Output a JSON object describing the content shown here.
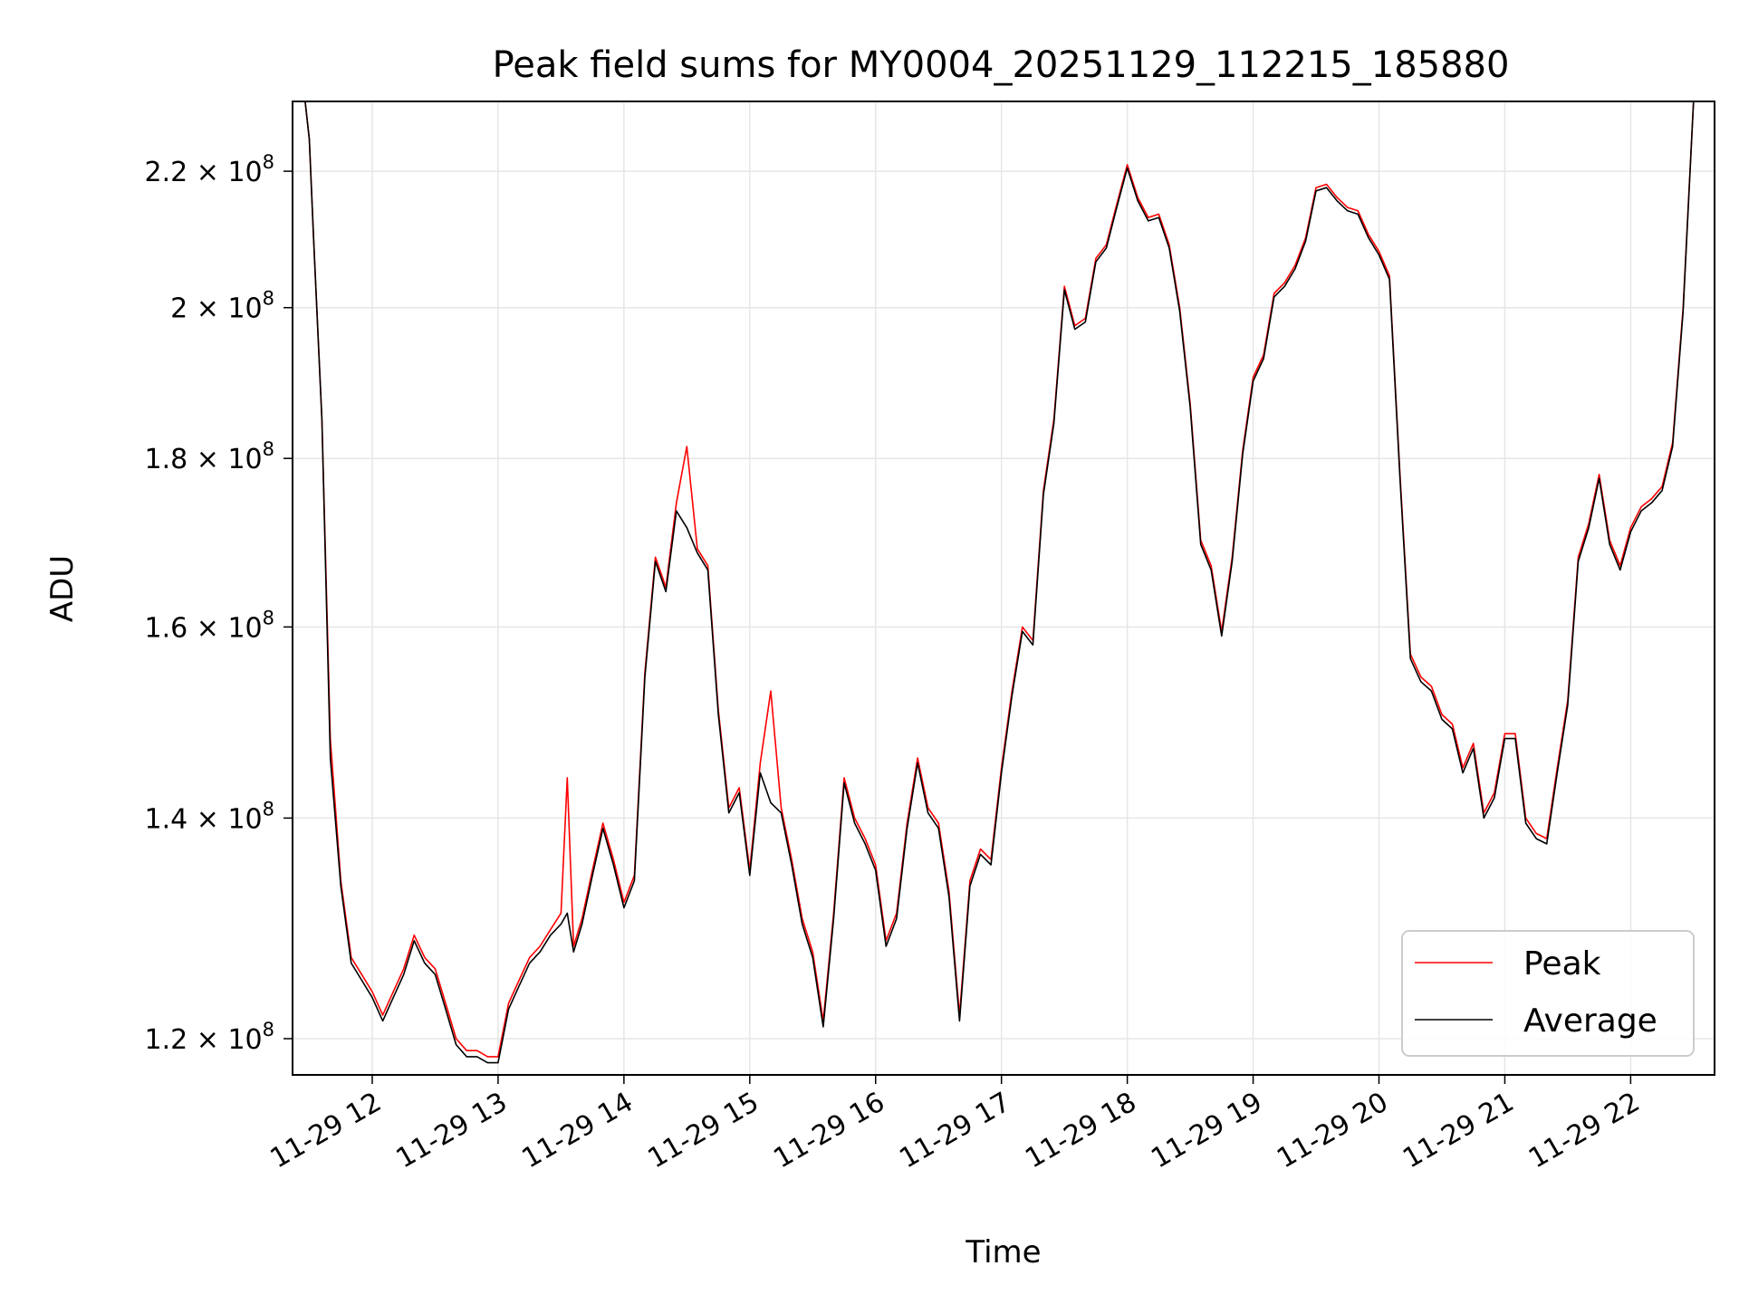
{
  "chart_data": {
    "type": "line",
    "title": "Peak field sums for MY0004_20251129_112215_185880",
    "xlabel": "Time",
    "ylabel": "ADU",
    "yscale": "log",
    "xlim": [
      "2025-11-29 11:22",
      "2025-11-29 22:40"
    ],
    "ylim": [
      117000000,
      231000000
    ],
    "grid": true,
    "legend_position": "lower right",
    "x_ticks": [
      {
        "time": "2025-11-29 12:00",
        "label": "11-29 12"
      },
      {
        "time": "2025-11-29 13:00",
        "label": "11-29 13"
      },
      {
        "time": "2025-11-29 14:00",
        "label": "11-29 14"
      },
      {
        "time": "2025-11-29 15:00",
        "label": "11-29 15"
      },
      {
        "time": "2025-11-29 16:00",
        "label": "11-29 16"
      },
      {
        "time": "2025-11-29 17:00",
        "label": "11-29 17"
      },
      {
        "time": "2025-11-29 18:00",
        "label": "11-29 18"
      },
      {
        "time": "2025-11-29 19:00",
        "label": "11-29 19"
      },
      {
        "time": "2025-11-29 20:00",
        "label": "11-29 20"
      },
      {
        "time": "2025-11-29 21:00",
        "label": "11-29 21"
      },
      {
        "time": "2025-11-29 22:00",
        "label": "11-29 22"
      }
    ],
    "y_ticks": [
      {
        "value": 120000000,
        "mantissa": "1.2",
        "exponent": "8"
      },
      {
        "value": 140000000,
        "mantissa": "1.4",
        "exponent": "8"
      },
      {
        "value": 160000000,
        "mantissa": "1.6",
        "exponent": "8"
      },
      {
        "value": 180000000,
        "mantissa": "1.8",
        "exponent": "8"
      },
      {
        "value": 200000000,
        "mantissa": "2",
        "exponent": "8"
      },
      {
        "value": 220000000,
        "mantissa": "2.2",
        "exponent": "8"
      }
    ],
    "series": [
      {
        "name": "Peak",
        "color": "#ff0000"
      },
      {
        "name": "Average",
        "color": "#000000"
      }
    ],
    "x": [
      "11:22",
      "11:25",
      "11:28",
      "11:30",
      "11:32",
      "11:36",
      "11:40",
      "11:45",
      "11:50",
      "11:55",
      "12:00",
      "12:05",
      "12:10",
      "12:15",
      "12:20",
      "12:25",
      "12:30",
      "12:35",
      "12:40",
      "12:45",
      "12:50",
      "12:55",
      "13:00",
      "13:05",
      "13:10",
      "13:15",
      "13:20",
      "13:25",
      "13:30",
      "13:33",
      "13:36",
      "13:40",
      "13:45",
      "13:50",
      "13:55",
      "14:00",
      "14:05",
      "14:10",
      "14:15",
      "14:20",
      "14:25",
      "14:30",
      "14:35",
      "14:40",
      "14:45",
      "14:50",
      "14:55",
      "15:00",
      "15:05",
      "15:10",
      "15:15",
      "15:20",
      "15:25",
      "15:30",
      "15:35",
      "15:40",
      "15:45",
      "15:50",
      "15:55",
      "16:00",
      "16:05",
      "16:10",
      "16:15",
      "16:20",
      "16:25",
      "16:30",
      "16:35",
      "16:40",
      "16:45",
      "16:50",
      "16:55",
      "17:00",
      "17:05",
      "17:10",
      "17:15",
      "17:20",
      "17:25",
      "17:30",
      "17:35",
      "17:40",
      "17:45",
      "17:50",
      "17:55",
      "18:00",
      "18:05",
      "18:10",
      "18:15",
      "18:20",
      "18:25",
      "18:30",
      "18:35",
      "18:40",
      "18:45",
      "18:50",
      "18:55",
      "19:00",
      "19:05",
      "19:10",
      "19:15",
      "19:20",
      "19:25",
      "19:30",
      "19:35",
      "19:40",
      "19:45",
      "19:50",
      "19:55",
      "20:00",
      "20:05",
      "20:10",
      "20:15",
      "20:20",
      "20:25",
      "20:30",
      "20:35",
      "20:40",
      "20:45",
      "20:50",
      "20:55",
      "21:00",
      "21:05",
      "21:10",
      "21:15",
      "21:20",
      "21:25",
      "21:30",
      "21:35",
      "21:40",
      "21:45",
      "21:50",
      "21:55",
      "22:00",
      "22:05",
      "22:10",
      "22:15",
      "22:20",
      "22:25",
      "22:30",
      "22:35",
      "22:40"
    ],
    "peak": [
      231000000,
      231000000,
      231000000,
      225000000,
      210000000,
      185000000,
      148000000,
      134000000,
      127000000,
      125500000,
      124000000,
      122000000,
      124000000,
      126000000,
      129000000,
      127000000,
      126000000,
      123000000,
      120000000,
      119000000,
      119000000,
      118500000,
      118500000,
      123000000,
      125000000,
      127000000,
      128000000,
      129500000,
      131000000,
      144000000,
      128000000,
      130500000,
      135000000,
      139500000,
      136000000,
      132000000,
      134500000,
      155000000,
      168000000,
      164500000,
      174500000,
      181500000,
      169000000,
      167000000,
      151000000,
      141000000,
      143000000,
      135000000,
      145500000,
      153000000,
      141000000,
      136000000,
      130500000,
      127500000,
      121500000,
      131000000,
      144000000,
      140000000,
      138000000,
      135500000,
      128500000,
      131000000,
      139500000,
      146000000,
      141000000,
      139500000,
      133000000,
      122000000,
      134000000,
      137000000,
      136000000,
      145000000,
      153000000,
      160000000,
      158500000,
      176000000,
      185000000,
      203000000,
      197500000,
      198500000,
      207000000,
      209000000,
      215000000,
      221000000,
      216000000,
      213000000,
      213500000,
      209000000,
      200000000,
      187000000,
      170000000,
      167000000,
      159500000,
      168000000,
      181000000,
      190500000,
      193500000,
      202000000,
      203500000,
      206000000,
      210000000,
      217500000,
      218000000,
      216000000,
      214500000,
      214000000,
      210500000,
      208000000,
      204500000,
      178000000,
      157000000,
      154500000,
      153500000,
      150500000,
      149500000,
      145000000,
      147500000,
      140500000,
      142500000,
      148500000,
      148500000,
      140000000,
      138500000,
      138000000,
      145000000,
      152000000,
      168000000,
      172000000,
      178000000,
      170000000,
      167000000,
      171500000,
      174000000,
      175000000,
      176500000,
      182000000,
      200000000,
      231000000,
      231000000,
      231000000
    ],
    "average": [
      231000000,
      231000000,
      231000000,
      225000000,
      210000000,
      185000000,
      146000000,
      133500000,
      126500000,
      125000000,
      123500000,
      121500000,
      123500000,
      125500000,
      128500000,
      126500000,
      125500000,
      122500000,
      119500000,
      118500000,
      118500000,
      118000000,
      118000000,
      122500000,
      124500000,
      126500000,
      127500000,
      129000000,
      130000000,
      131000000,
      127500000,
      130000000,
      134500000,
      139000000,
      135500000,
      131500000,
      134000000,
      154500000,
      167500000,
      164000000,
      173500000,
      171500000,
      168500000,
      166500000,
      150500000,
      140500000,
      142500000,
      134500000,
      144500000,
      141500000,
      140500000,
      135500000,
      130000000,
      127000000,
      121000000,
      130500000,
      143500000,
      139500000,
      137500000,
      135000000,
      128000000,
      130500000,
      139000000,
      145500000,
      140500000,
      139000000,
      132500000,
      121500000,
      133500000,
      136500000,
      135500000,
      144500000,
      152500000,
      159500000,
      158000000,
      175500000,
      184500000,
      202500000,
      197000000,
      198000000,
      206500000,
      208500000,
      214500000,
      220500000,
      215500000,
      212500000,
      213000000,
      208500000,
      199500000,
      186500000,
      169500000,
      166500000,
      159000000,
      167500000,
      180500000,
      190000000,
      193000000,
      201500000,
      203000000,
      205500000,
      209500000,
      217000000,
      217500000,
      215500000,
      214000000,
      213500000,
      210000000,
      207500000,
      204000000,
      177500000,
      156500000,
      154000000,
      153000000,
      150000000,
      149000000,
      144500000,
      147000000,
      140000000,
      142000000,
      148000000,
      148000000,
      139500000,
      138000000,
      137500000,
      144500000,
      151500000,
      167500000,
      171500000,
      177500000,
      169500000,
      166500000,
      171000000,
      173500000,
      174500000,
      176000000,
      181500000,
      199500000,
      231000000,
      231000000,
      231000000
    ]
  }
}
